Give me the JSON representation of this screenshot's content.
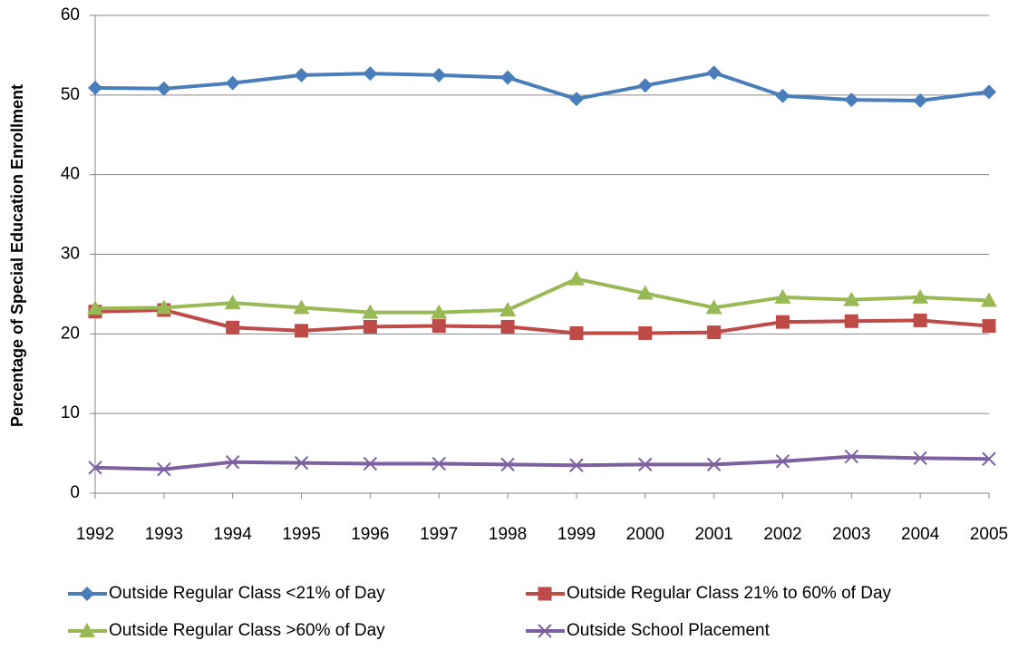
{
  "chart_data": {
    "type": "line",
    "y_label": "Percentage of Special Education Enrollment",
    "x": [
      1992,
      1993,
      1994,
      1995,
      1996,
      1997,
      1998,
      1999,
      2000,
      2001,
      2002,
      2003,
      2004,
      2005
    ],
    "xlim": [
      1992,
      2005
    ],
    "xticks": [
      1992,
      1993,
      1994,
      1995,
      1996,
      1997,
      1998,
      1999,
      2000,
      2001,
      2002,
      2003,
      2004,
      2005
    ],
    "ylim": [
      0,
      60
    ],
    "yticks": [
      0,
      10,
      20,
      30,
      40,
      50,
      60
    ],
    "grid": true,
    "series": [
      {
        "name": "Outside Regular Class <21% of Day",
        "color": "#4a7ebb",
        "marker": "diamond",
        "values": [
          50.9,
          50.8,
          51.5,
          52.5,
          52.7,
          52.5,
          52.2,
          49.5,
          51.2,
          52.8,
          49.9,
          49.4,
          49.3,
          50.4
        ]
      },
      {
        "name": "Outside Regular Class 21% to 60% of Day",
        "color": "#be4b48",
        "marker": "square",
        "values": [
          22.8,
          23.0,
          20.8,
          20.4,
          20.9,
          21.0,
          20.9,
          20.1,
          20.1,
          20.2,
          21.5,
          21.6,
          21.7,
          21.0
        ]
      },
      {
        "name": "Outside Regular Class >60% of Day",
        "color": "#98b954",
        "marker": "triangle",
        "values": [
          23.2,
          23.3,
          23.9,
          23.3,
          22.7,
          22.7,
          23.0,
          26.9,
          25.1,
          23.3,
          24.6,
          24.3,
          24.6,
          24.2
        ]
      },
      {
        "name": "Outside School Placement",
        "color": "#7d60a0",
        "marker": "x",
        "values": [
          3.2,
          3.0,
          3.9,
          3.8,
          3.7,
          3.7,
          3.6,
          3.5,
          3.6,
          3.6,
          4.0,
          4.6,
          4.4,
          4.3
        ]
      }
    ]
  }
}
